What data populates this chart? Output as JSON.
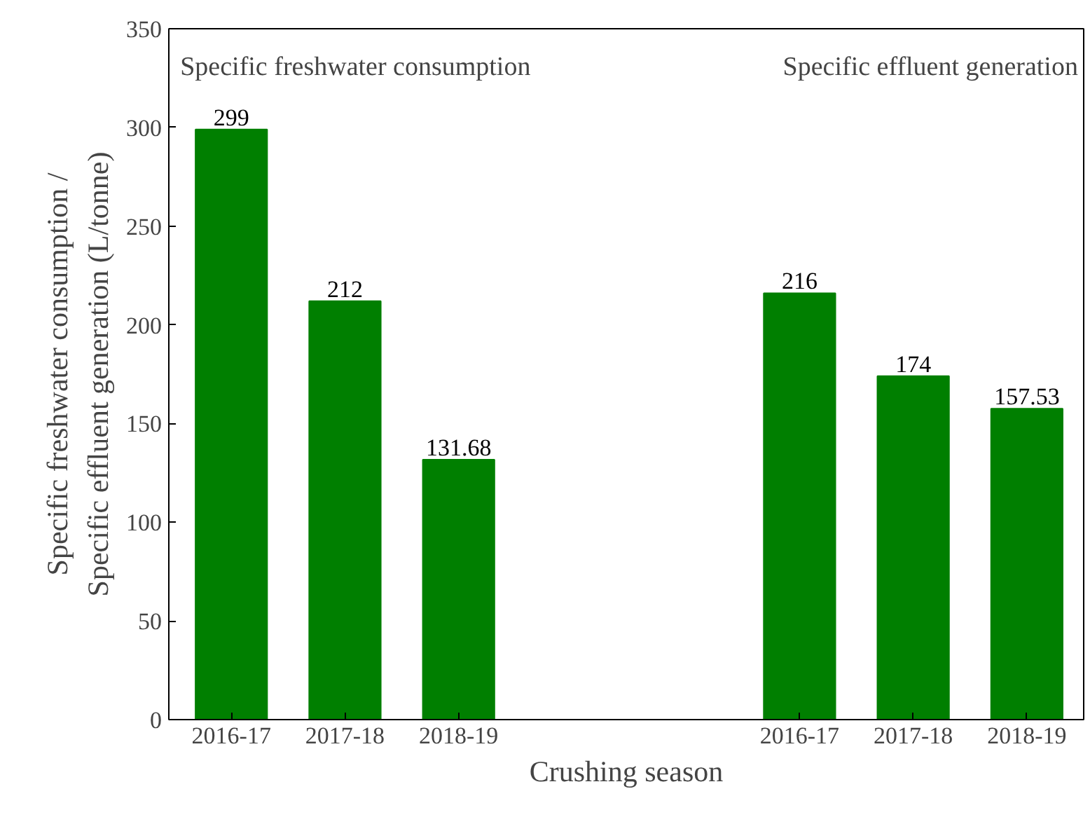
{
  "chart_data": {
    "type": "bar",
    "xlabel": "Crushing season",
    "ylabel": "Specific freshwater consumption /\nSpecific effluent generation (L/tonne)",
    "categories": [
      "2016-17",
      "2017-18",
      "2018-19",
      null,
      null,
      "2016-17",
      "2017-18",
      "2018-19"
    ],
    "values": [
      299,
      212,
      131.68,
      null,
      null,
      216,
      174,
      157.53
    ],
    "color": "#007f00",
    "data_labels": true,
    "ylim": [
      0,
      350
    ],
    "yticks": [
      0,
      50,
      100,
      150,
      200,
      250,
      300,
      350
    ],
    "grid": false,
    "annotations": [
      "Specific freshwater consumption",
      "Specific effluent generation"
    ]
  }
}
